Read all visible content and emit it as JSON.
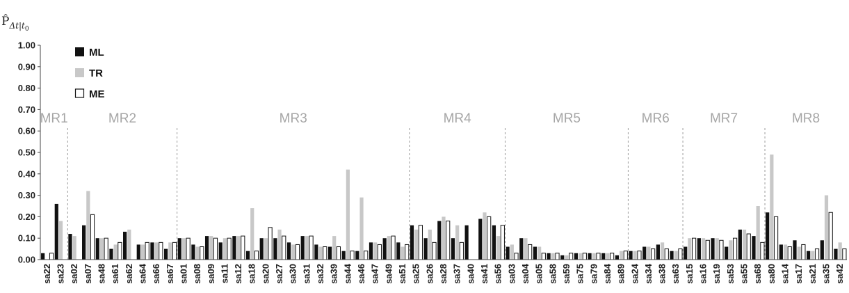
{
  "chart_data": {
    "type": "bar",
    "ylabel": {
      "main": "P̂",
      "sub": "Δt|t",
      "subsub": "0"
    },
    "ylim": [
      0,
      1.0
    ],
    "yticks": [
      "0.00",
      "0.10",
      "0.20",
      "0.30",
      "0.40",
      "0.50",
      "0.60",
      "0.70",
      "0.80",
      "0.90",
      "1.00"
    ],
    "grid": false,
    "legend_position": "top-left",
    "colors": {
      "ML": "#111111",
      "TR": "#c8c8c8",
      "ME": "#ffffff",
      "ME_stroke": "#111111",
      "region_text": "#a6a6a6",
      "divider": "#9a9a9a"
    },
    "categories": [
      "sa22",
      "sa23",
      "sa02",
      "sa07",
      "sa48",
      "sa61",
      "sa62",
      "sa64",
      "sa66",
      "sa67",
      "sa01",
      "sa08",
      "sa09",
      "sa11",
      "sa12",
      "sa18",
      "sa20",
      "sa27",
      "sa30",
      "sa31",
      "sa32",
      "sa39",
      "sa44",
      "sa46",
      "sa47",
      "sa49",
      "sa51",
      "sa25",
      "sa26",
      "sa28",
      "sa37",
      "sa40",
      "sa41",
      "sa56",
      "sa03",
      "sa04",
      "sa05",
      "sa58",
      "sa59",
      "sa75",
      "sa79",
      "sa84",
      "sa89",
      "sa24",
      "sa34",
      "sa38",
      "sa63",
      "sa15",
      "sa16",
      "sa19",
      "sa53",
      "sa55",
      "sa68",
      "sa80",
      "sa14",
      "sa17",
      "sa21",
      "sa35",
      "sa42"
    ],
    "series": [
      {
        "name": "ML",
        "values": [
          0.03,
          0.26,
          0.12,
          0.16,
          0.1,
          0.05,
          0.13,
          0.07,
          0.08,
          0.05,
          0.1,
          0.07,
          0.11,
          0.08,
          0.11,
          0.04,
          0.1,
          0.1,
          0.08,
          0.11,
          0.07,
          0.06,
          0.04,
          0.04,
          0.08,
          0.1,
          0.08,
          0.16,
          0.1,
          0.18,
          0.1,
          0.16,
          0.19,
          0.16,
          0.06,
          0.1,
          0.06,
          0.03,
          0.02,
          0.03,
          0.03,
          0.03,
          0.02,
          0.04,
          0.06,
          0.07,
          0.04,
          0.06,
          0.1,
          0.1,
          0.06,
          0.14,
          0.11,
          0.22,
          0.07,
          0.09,
          0.04,
          0.09,
          0.05
        ]
      },
      {
        "name": "TR",
        "values": [
          0.0,
          0.18,
          0.11,
          0.32,
          0.1,
          0.07,
          0.14,
          0.07,
          0.08,
          0.08,
          0.1,
          0.06,
          0.11,
          0.1,
          0.11,
          0.24,
          0.1,
          0.14,
          0.07,
          0.11,
          0.06,
          0.11,
          0.42,
          0.29,
          0.08,
          0.11,
          0.06,
          0.14,
          0.14,
          0.2,
          0.16,
          0.0,
          0.22,
          0.11,
          0.07,
          0.1,
          0.06,
          0.03,
          0.02,
          0.03,
          0.03,
          0.03,
          0.04,
          0.04,
          0.06,
          0.08,
          0.04,
          0.1,
          0.1,
          0.1,
          0.09,
          0.14,
          0.25,
          0.49,
          0.07,
          0.06,
          0.04,
          0.3,
          0.08
        ]
      },
      {
        "name": "ME",
        "values": [
          0.03,
          0.0,
          0.0,
          0.21,
          0.1,
          0.08,
          0.0,
          0.08,
          0.08,
          0.08,
          0.1,
          0.06,
          0.1,
          0.1,
          0.11,
          0.04,
          0.15,
          0.11,
          0.07,
          0.11,
          0.06,
          0.06,
          0.04,
          0.04,
          0.07,
          0.11,
          0.07,
          0.16,
          0.08,
          0.18,
          0.08,
          0.0,
          0.2,
          0.16,
          0.03,
          0.07,
          0.03,
          0.03,
          0.03,
          0.03,
          0.03,
          0.03,
          0.04,
          0.04,
          0.05,
          0.05,
          0.05,
          0.1,
          0.09,
          0.09,
          0.1,
          0.12,
          0.08,
          0.2,
          0.06,
          0.07,
          0.05,
          0.22,
          0.05
        ]
      }
    ],
    "regions": [
      {
        "label": "MR1",
        "start": 0,
        "end": 1
      },
      {
        "label": "MR2",
        "start": 2,
        "end": 9
      },
      {
        "label": "MR3",
        "start": 10,
        "end": 26
      },
      {
        "label": "MR4",
        "start": 27,
        "end": 33
      },
      {
        "label": "MR5",
        "start": 34,
        "end": 42
      },
      {
        "label": "MR6",
        "start": 43,
        "end": 46
      },
      {
        "label": "MR7",
        "start": 47,
        "end": 52
      },
      {
        "label": "MR8",
        "start": 53,
        "end": 58
      }
    ]
  }
}
